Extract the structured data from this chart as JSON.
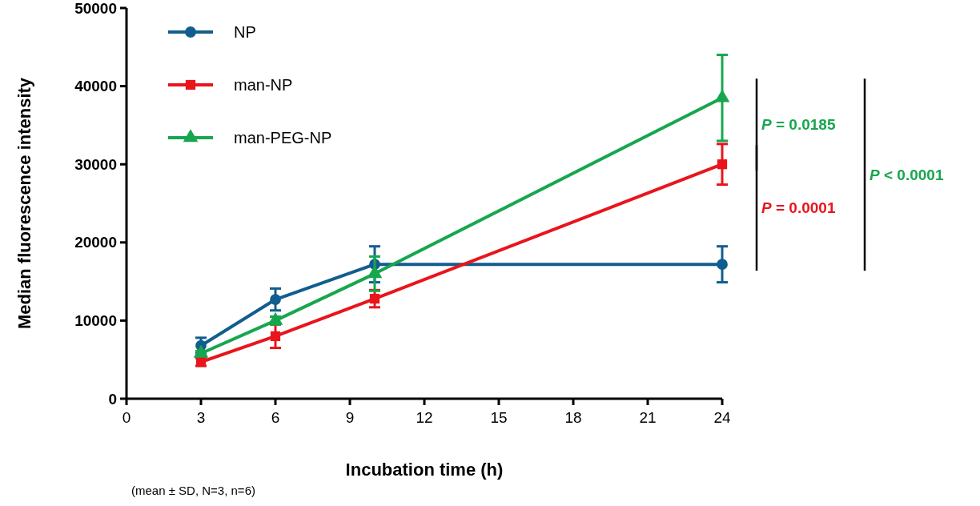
{
  "chart_data": {
    "type": "line",
    "xlabel": "Incubation time (h)",
    "ylabel": "Median fluorescence intensity",
    "xlim": [
      0,
      24
    ],
    "xticks": [
      0,
      3,
      6,
      9,
      12,
      15,
      18,
      21,
      24
    ],
    "ylim": [
      0,
      50000
    ],
    "yticks": [
      0,
      10000,
      20000,
      30000,
      40000,
      50000
    ],
    "grid": false,
    "legend": "top left",
    "line_style": "solid",
    "series": [
      {
        "name": "NP",
        "color": "#125d8f",
        "marker": "circle",
        "x": [
          3,
          6,
          10,
          24
        ],
        "values": [
          6800,
          12700,
          17200,
          17200
        ],
        "errors": [
          1000,
          1400,
          2300,
          2300
        ]
      },
      {
        "name": "man-NP",
        "color": "#e8151c",
        "marker": "square",
        "x": [
          3,
          6,
          10,
          24
        ],
        "values": [
          4700,
          8000,
          12800,
          30000
        ],
        "errors": [
          500,
          1500,
          1100,
          2600
        ]
      },
      {
        "name": "man-PEG-NP",
        "color": "#17a64e",
        "marker": "triangle",
        "x": [
          3,
          6,
          10,
          24
        ],
        "values": [
          5800,
          10000,
          16000,
          38500
        ],
        "errors": [
          300,
          500,
          2200,
          5500
        ]
      }
    ],
    "annotations": [
      "P = 0.0185",
      "P = 0.0001",
      "P < 0.0001",
      "(mean ± SD, N=3, n=6)"
    ]
  }
}
